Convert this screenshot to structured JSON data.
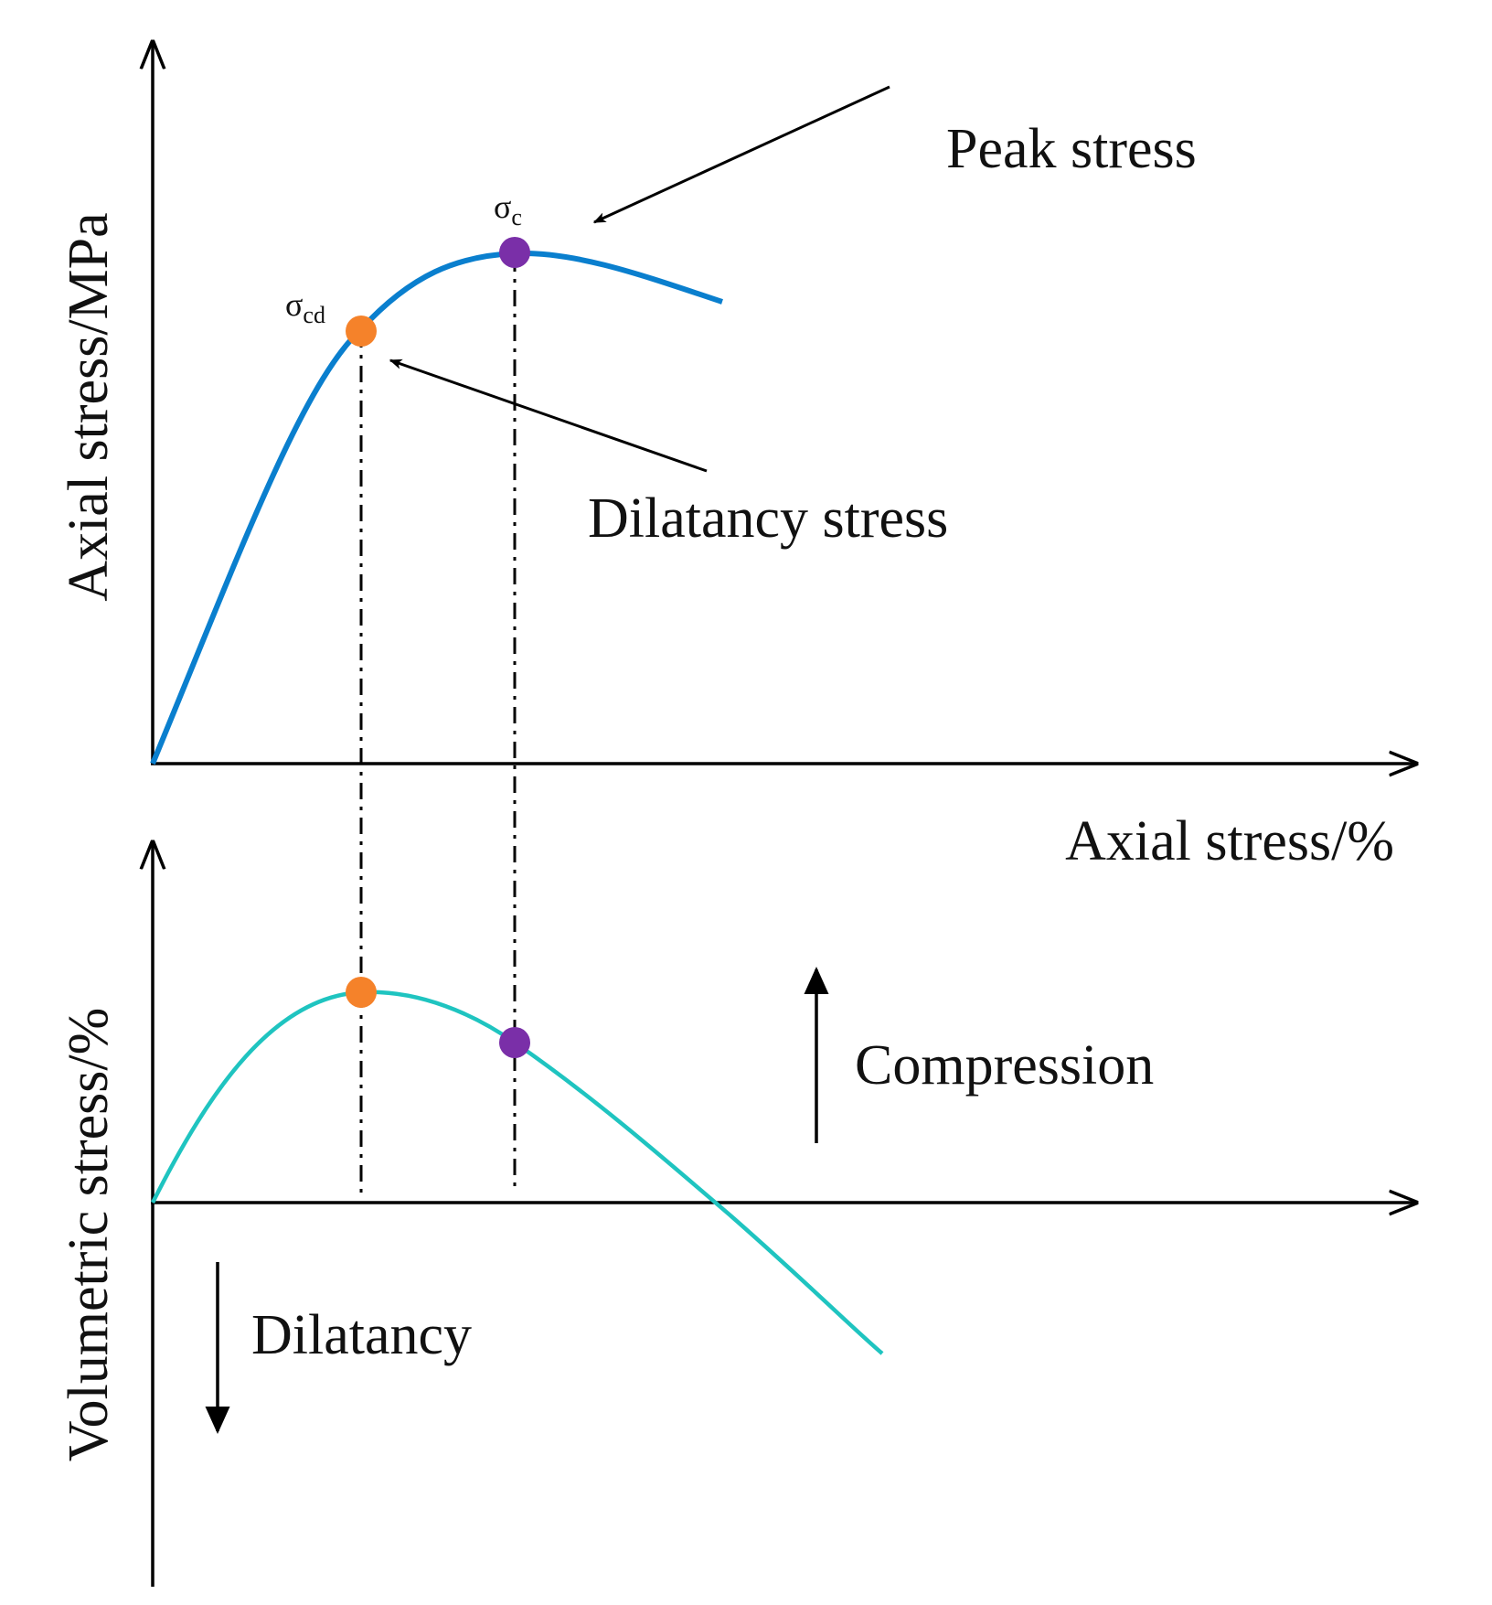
{
  "diagram": {
    "upper_panel": {
      "y_axis_label": "Axial stress/MPa",
      "x_axis_label": "Axial stress/%",
      "curve_color": "#0a7fce",
      "peak_marker": {
        "symbol": "σ",
        "subscript": "c",
        "color": "#7a2fa8"
      },
      "dilatancy_marker": {
        "symbol": "σ",
        "subscript": "cd",
        "color": "#f5822a"
      },
      "annotations": {
        "peak": "Peak stress",
        "dilatancy": "Dilatancy stress"
      }
    },
    "lower_panel": {
      "y_axis_label": "Volumetric stress/%",
      "curve_color": "#1fc4c0",
      "annotations": {
        "compression": "Compression",
        "dilatancy": "Dilatancy"
      }
    },
    "axis_color": "#000000",
    "guide_color": "#000000"
  }
}
